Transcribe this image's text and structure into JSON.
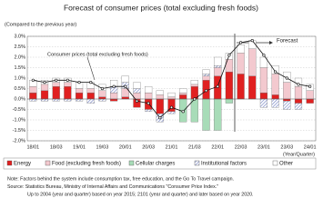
{
  "chart_data": {
    "type": "bar",
    "title": "Forecast of consumer prices (total excluding fresh foods)",
    "subtitle": "(Compared to the previous year)",
    "x_label": "(Year/Quarter)",
    "forecast_label": "Forecast",
    "categories": [
      "18/01",
      null,
      "18/03",
      null,
      "19/01",
      null,
      "19/03",
      null,
      "20/01",
      null,
      "20/03",
      null,
      "21/01",
      null,
      "21/03",
      null,
      "22/01",
      null,
      "22/03",
      null,
      "23/01",
      null,
      "23/03",
      null,
      "24/01"
    ],
    "series": [
      {
        "name": "Energy",
        "color": "#e02020",
        "values": [
          0.3,
          0.4,
          0.6,
          0.6,
          0.3,
          0.3,
          0.1,
          -0.1,
          0.1,
          -0.4,
          -0.5,
          -0.7,
          -0.6,
          0.2,
          0.6,
          0.9,
          1.1,
          1.3,
          1.2,
          1.1,
          0.3,
          0.2,
          -0.1,
          -0.2,
          -0.2
        ]
      },
      {
        "name": "Food (excluding fresh foods)",
        "color": "#f3c9cf",
        "values": [
          0.3,
          0.3,
          0.2,
          0.2,
          0.2,
          0.2,
          0.3,
          0.3,
          0.4,
          0.3,
          0.3,
          0.2,
          0.1,
          0.1,
          0.1,
          0.2,
          0.4,
          0.6,
          1.0,
          1.3,
          1.2,
          1.0,
          0.8,
          0.6,
          0.4
        ]
      },
      {
        "name": "Cellular charges",
        "color": "#a8dcb8",
        "values": [
          0,
          0,
          0,
          0,
          0,
          0,
          0,
          0,
          0,
          0,
          0,
          0,
          0,
          -1.1,
          -1.1,
          -1.5,
          -1.5,
          -0.2,
          0,
          0,
          0,
          0,
          0,
          0,
          0
        ]
      },
      {
        "name": "Institutional factors",
        "color": "#7f8cc8",
        "pattern": "hatch",
        "values": [
          -0.1,
          -0.1,
          -0.1,
          -0.1,
          -0.1,
          -0.2,
          -0.1,
          0.3,
          0.3,
          0.2,
          -0.1,
          -0.4,
          -0.1,
          0,
          0,
          0.1,
          0.1,
          0,
          0,
          0,
          -0.4,
          -0.4,
          -0.4,
          -0.3,
          0
        ]
      },
      {
        "name": "Other",
        "color": "#ffffff",
        "values": [
          0.3,
          0.2,
          0.2,
          0.2,
          0.3,
          0.3,
          0.3,
          0.3,
          0.3,
          0.3,
          0.3,
          0.2,
          0.2,
          0.2,
          0.2,
          0.2,
          0.4,
          0.3,
          0.4,
          0.4,
          0.5,
          0.4,
          0.5,
          0.4,
          0.3
        ]
      }
    ],
    "line": {
      "name": "Consumer prices (total excluding fresh foods)",
      "color": "#111111",
      "values": [
        0.9,
        0.8,
        0.9,
        0.9,
        0.8,
        0.8,
        0.5,
        0.6,
        0.6,
        -0.1,
        -0.2,
        -0.9,
        -0.4,
        -0.6,
        0.0,
        0.4,
        0.6,
        2.1,
        2.7,
        2.8,
        2.1,
        1.3,
        1.0,
        0.7,
        0.6
      ]
    },
    "ylim": [
      -2,
      3
    ],
    "yticks": [
      {
        "value": -2,
        "label": "-2.0%"
      },
      {
        "value": -1.5,
        "label": "-1.5%"
      },
      {
        "value": -1,
        "label": "-1.0%"
      },
      {
        "value": -0.5,
        "label": "-0.5%"
      },
      {
        "value": 0,
        "label": "0.0%"
      },
      {
        "value": 0.5,
        "label": "0.5%"
      },
      {
        "value": 1,
        "label": "1.0%"
      },
      {
        "value": 1.5,
        "label": "1.5%"
      },
      {
        "value": 2,
        "label": "2.0%"
      },
      {
        "value": 2.5,
        "label": "2.5%"
      },
      {
        "value": 3,
        "label": "3.0%"
      }
    ],
    "grid": true,
    "notes": [
      "Note: Factors behind the system include consumption tax, free education, and the Go To Travel campaign.",
      "Source: Statistics Bureau, Ministry of Internal Affairs and Communications \"Consumer Price Index.\"",
      "Up to 2004 (year and quarter) based on year 2015; 2101 (year and quarter) and later based on year 2020."
    ]
  }
}
